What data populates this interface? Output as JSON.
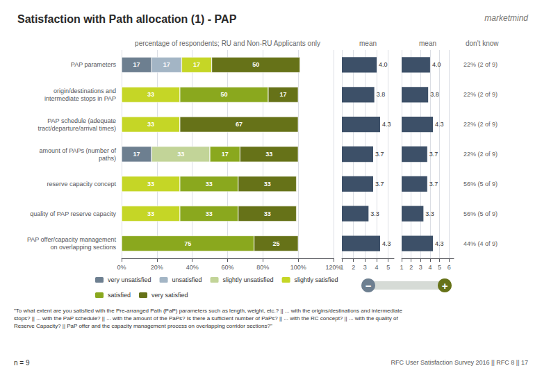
{
  "chart_data": [
    {
      "type": "bar",
      "orientation": "horizontal",
      "stacked": true,
      "title": "Satisfaction with Path allocation (1) - PAP",
      "subtitle": "percentage of respondents; RU and Non-RU Applicants only",
      "categories": [
        "PAP parameters",
        "origin/destinations and\nintermediate stops in PAP",
        "PAP schedule (adequate\ntract/departure/arrival times)",
        "amount of PAPs (number of\npaths)",
        "reserve capacity concept",
        "quality of PAP reserve capacity",
        "PAP offer/capacity management\non overlapping sections"
      ],
      "series": [
        {
          "name": "very unsatisfied",
          "color": "#6d7f90",
          "values": [
            17,
            0,
            0,
            17,
            0,
            0,
            0
          ]
        },
        {
          "name": "unsatisfied",
          "color": "#a3b5c5",
          "values": [
            17,
            0,
            0,
            0,
            0,
            0,
            0
          ]
        },
        {
          "name": "slightly unsatisfied",
          "color": "#c2d498",
          "values": [
            0,
            0,
            0,
            33,
            0,
            0,
            0
          ]
        },
        {
          "name": "slightly satisfied",
          "color": "#c5d626",
          "values": [
            17,
            33,
            33,
            0,
            33,
            33,
            0
          ]
        },
        {
          "name": "satisfied",
          "color": "#8aa81e",
          "values": [
            0,
            50,
            0,
            17,
            33,
            33,
            75
          ]
        },
        {
          "name": "very satisfied",
          "color": "#667218",
          "values": [
            50,
            17,
            67,
            33,
            33,
            33,
            25
          ]
        }
      ],
      "xlim": [
        0,
        120
      ],
      "xticks": [
        {
          "value": 0,
          "label": "0%"
        },
        {
          "value": 20,
          "label": "20%"
        },
        {
          "value": 40,
          "label": "40%"
        },
        {
          "value": 60,
          "label": "60%"
        },
        {
          "value": 80,
          "label": "80%"
        },
        {
          "value": 100,
          "label": "100%"
        },
        {
          "value": 120,
          "label": "120%"
        }
      ],
      "grid": true,
      "legend": "bottom",
      "data_labels": true,
      "annotations": [
        "marketmind",
        "−",
        "+",
        "\"To what extent are you satisfied with the Pre-arranged Path (PaP) parameters such as length, weight, etc.? || ... with the origins/destinations and intermediate\nstops? || ... with the PaP schedule? || ... with the amount of the PaPs? Is there a sufficient number of PaPs? || ... with the RC concept? || ... with the quality of\nReserve Capacity? || PaP offer and the capacity management process on overlapping corridor sections?\"",
        "n = 9",
        "RFC User Satisfaction Survey 2016 || RFC 8 || 17"
      ]
    },
    {
      "type": "bar",
      "orientation": "horizontal",
      "title": "mean",
      "categories": [
        "PAP parameters",
        "origin/destinations and\nintermediate stops in PAP",
        "PAP schedule (adequate\ntract/departure/arrival times)",
        "amount of PAPs (number of\npaths)",
        "reserve capacity concept",
        "quality of PAP reserve capacity",
        "PAP offer/capacity management\non overlapping sections"
      ],
      "values": [
        4.0,
        3.8,
        4.3,
        3.7,
        3.7,
        3.3,
        4.3
      ],
      "value_labels": [
        "4.0",
        "3.8",
        "4.3",
        "3.7",
        "3.7",
        "3.3",
        "4.3"
      ],
      "color": "#3d5068",
      "xlim": [
        1,
        5.5
      ],
      "xticks": [
        1,
        2,
        3,
        4,
        5
      ],
      "grid": true,
      "data_labels": true,
      "tick_labels": "x"
    },
    {
      "type": "bar",
      "orientation": "horizontal",
      "title": "mean",
      "categories": [
        "PAP parameters",
        "origin/destinations and\nintermediate stops in PAP",
        "PAP schedule (adequate\ntract/departure/arrival times)",
        "amount of PAPs (number of\npaths)",
        "reserve capacity concept",
        "quality of PAP reserve capacity",
        "PAP offer/capacity management\non overlapping sections"
      ],
      "values": [
        4.0,
        3.8,
        4.3,
        3.7,
        3.7,
        3.3,
        4.3
      ],
      "value_labels": [
        "4.0",
        "3.8",
        "4.3",
        "3.7",
        "3.7",
        "3.3",
        "4.3"
      ],
      "color": "#3d5068",
      "xlim": [
        1,
        6.5
      ],
      "xticks": [
        1,
        2,
        3,
        4,
        5,
        6
      ],
      "grid": true,
      "data_labels": true,
      "tick_labels": "x"
    },
    {
      "type": "text",
      "title": "don't know",
      "categories": [
        "PAP parameters",
        "origin/destinations and\nintermediate stops in PAP",
        "PAP schedule (adequate\ntract/departure/arrival times)",
        "amount of PAPs (number of\npaths)",
        "reserve capacity concept",
        "quality of PAP reserve capacity",
        "PAP offer/capacity management\non overlapping sections"
      ],
      "annotations": [
        "22% (2 of 9)",
        "22% (2 of 9)",
        "22% (2 of 9)",
        "22% (2 of 9)",
        "56% (5 of 9)",
        "56% (5 of 9)",
        "44% (4 of 9)"
      ]
    }
  ]
}
